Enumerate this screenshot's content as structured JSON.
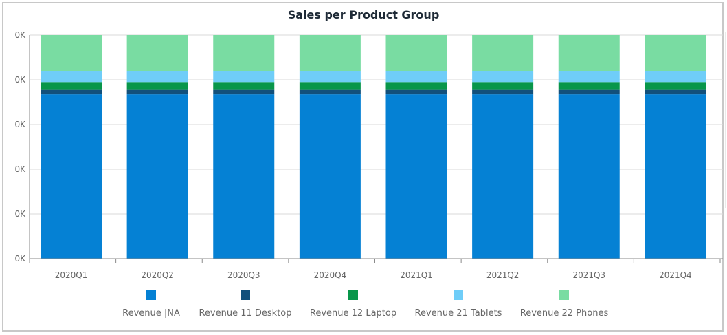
{
  "chart_data": {
    "type": "bar",
    "stacked": true,
    "title": "Sales per Product Group",
    "xlabel": "",
    "ylabel": "",
    "categories": [
      "2020Q1",
      "2020Q2",
      "2020Q3",
      "2020Q4",
      "2021Q1",
      "2021Q2",
      "2021Q3",
      "2021Q4"
    ],
    "y_tick_labels": [
      "0K",
      "0K",
      "0K",
      "0K",
      "0K",
      "0K"
    ],
    "ylim": [
      0,
      100
    ],
    "grid": true,
    "legend_position": "bottom",
    "series": [
      {
        "name": "Revenue |NA",
        "color": "#0581d4",
        "values": [
          73.5,
          73.5,
          73.5,
          73.5,
          73.5,
          73.5,
          73.5,
          73.5
        ]
      },
      {
        "name": "Revenue 11 Desktop",
        "color": "#12507b",
        "values": [
          2,
          2,
          2,
          2,
          2,
          2,
          2,
          2
        ]
      },
      {
        "name": "Revenue 12 Laptop",
        "color": "#08964a",
        "values": [
          3.5,
          3.5,
          3.5,
          3.5,
          3.5,
          3.5,
          3.5,
          3.5
        ]
      },
      {
        "name": "Revenue 21 Tablets",
        "color": "#6fcdf8",
        "values": [
          5,
          5,
          5,
          5,
          5,
          5,
          5,
          5
        ]
      },
      {
        "name": "Revenue 22 Phones",
        "color": "#79dca2",
        "values": [
          16,
          16,
          16,
          16,
          16,
          16,
          16,
          16
        ]
      }
    ]
  }
}
